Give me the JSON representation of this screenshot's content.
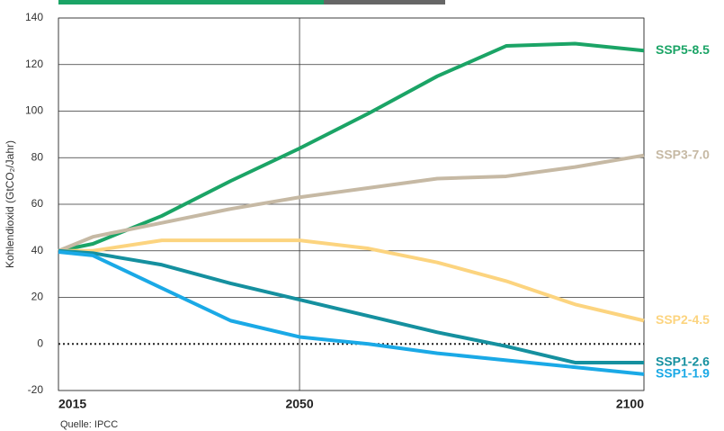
{
  "chart_data": {
    "type": "line",
    "y_label": "Kohlendioxid (GtCO₂/Jahr)",
    "source": "Quelle: IPCC",
    "x": [
      2015,
      2020,
      2030,
      2040,
      2050,
      2060,
      2070,
      2080,
      2090,
      2100
    ],
    "xlim": [
      2015,
      2100
    ],
    "xticks": [
      2015,
      2050,
      2100
    ],
    "ylim": [
      -20,
      140
    ],
    "yticks": [
      -20,
      0,
      20,
      40,
      60,
      80,
      100,
      120,
      140
    ],
    "grid": true,
    "series": [
      {
        "name": "SSP5-8.5",
        "color": "#1ba466",
        "values": [
          40,
          43,
          55,
          70,
          84,
          99,
          115,
          128,
          129,
          126
        ]
      },
      {
        "name": "SSP3-7.0",
        "color": "#c6b9a4",
        "values": [
          40,
          46,
          52,
          58,
          63,
          67,
          71,
          72,
          76,
          81
        ]
      },
      {
        "name": "SSP2-4.5",
        "color": "#fcd47f",
        "values": [
          40,
          40,
          44.5,
          44.5,
          44.5,
          41,
          35,
          27,
          17,
          10
        ]
      },
      {
        "name": "SSP1-2.6",
        "color": "#15909f",
        "values": [
          40,
          39,
          34,
          26,
          19,
          12,
          5,
          -1,
          -8,
          -8
        ]
      },
      {
        "name": "SSP1-1.9",
        "color": "#1aa9e6",
        "values": [
          39.5,
          38,
          24,
          10,
          3,
          0,
          -4,
          -7,
          -10,
          -13
        ]
      }
    ]
  }
}
